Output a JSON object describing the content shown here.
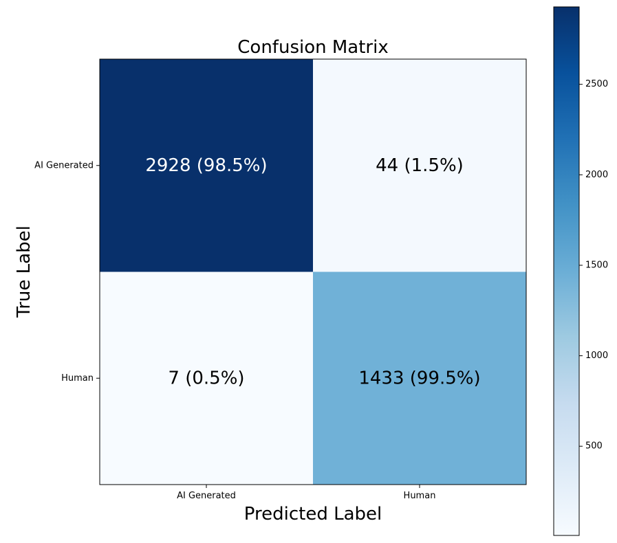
{
  "chart_data": {
    "type": "heatmap",
    "title": "Confusion Matrix",
    "xlabel": "Predicted Label",
    "ylabel": "True Label",
    "x_categories": [
      "AI Generated",
      "Human"
    ],
    "y_categories": [
      "AI Generated",
      "Human"
    ],
    "values": [
      [
        2928,
        44
      ],
      [
        7,
        1433
      ]
    ],
    "cell_labels": [
      [
        "2928 (98.5%)",
        "44 (1.5%)"
      ],
      [
        "7 (0.5%)",
        "1433 (99.5%)"
      ]
    ],
    "colormap": "Blues",
    "colorbar": {
      "range": [
        7,
        2928
      ],
      "ticks": [
        500,
        1000,
        1500,
        2000,
        2500
      ],
      "tick_labels": [
        "500",
        "1000",
        "1500",
        "2000",
        "2500"
      ]
    },
    "grid": false
  }
}
